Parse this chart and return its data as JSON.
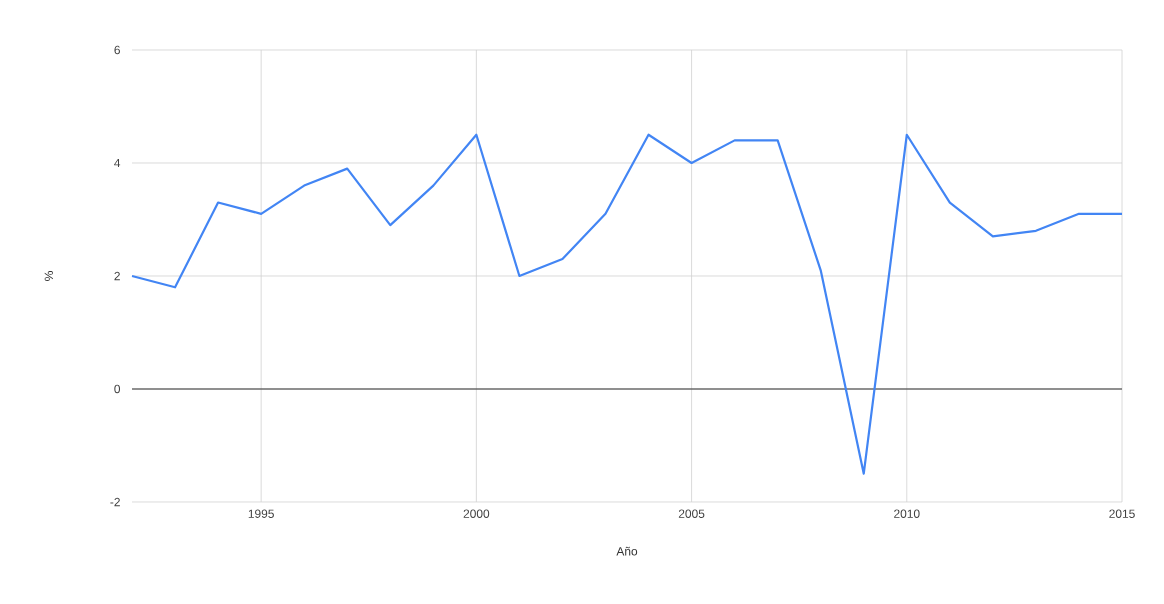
{
  "chart_data": {
    "type": "line",
    "xlabel": "Año",
    "ylabel": "%",
    "x": [
      1992,
      1993,
      1994,
      1995,
      1996,
      1997,
      1998,
      1999,
      2000,
      2001,
      2002,
      2003,
      2004,
      2005,
      2006,
      2007,
      2008,
      2009,
      2010,
      2011,
      2012,
      2013,
      2014,
      2015
    ],
    "series": [
      {
        "color": "#4285f4",
        "values": [
          2.0,
          1.8,
          3.3,
          3.1,
          3.6,
          3.9,
          2.9,
          3.6,
          4.5,
          2.0,
          2.3,
          3.1,
          4.5,
          4.0,
          4.4,
          4.4,
          2.1,
          -1.5,
          4.5,
          3.3,
          2.7,
          2.8,
          3.1,
          3.1
        ]
      }
    ],
    "xlim": [
      1992,
      2015
    ],
    "ylim": [
      -2,
      6
    ],
    "xticks": [
      1995,
      2000,
      2005,
      2010,
      2015
    ],
    "yticks": [
      -2,
      0,
      2,
      4,
      6
    ],
    "grid": true,
    "marker": "none",
    "line_style": "solid",
    "ref_lines": [
      {
        "axis": "y",
        "value": 0,
        "color": "#333333"
      }
    ]
  }
}
